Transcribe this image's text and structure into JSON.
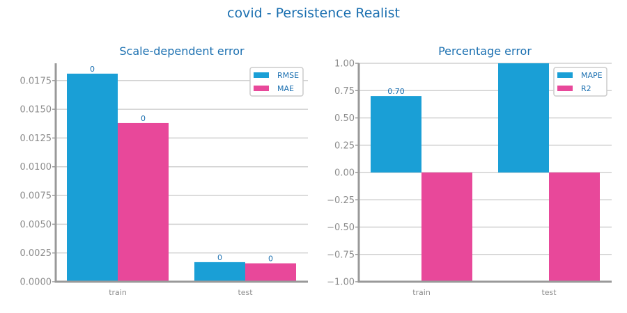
{
  "figure": {
    "title": "covid - Persistence Realist"
  },
  "colors": {
    "series1": "#1a9fd6",
    "series2": "#e8489a",
    "text": "#1a6fb0",
    "axis": "#999999",
    "grid": "#d0d0d0"
  },
  "chart_data": [
    {
      "type": "bar",
      "title": "Scale-dependent error",
      "categories": [
        "train",
        "test"
      ],
      "series": [
        {
          "name": "RMSE",
          "values": [
            0.0181,
            0.0017
          ],
          "labels": [
            "0",
            "0"
          ]
        },
        {
          "name": "MAE",
          "values": [
            0.0138,
            0.0016
          ],
          "labels": [
            "0",
            "0"
          ]
        }
      ],
      "ylim": [
        0,
        0.019
      ],
      "yticks": [
        0,
        0.0025,
        0.005,
        0.0075,
        0.01,
        0.0125,
        0.015,
        0.0175
      ],
      "ytick_labels": [
        "0.0000",
        "0.0025",
        "0.0050",
        "0.0075",
        "0.0100",
        "0.0125",
        "0.0150",
        "0.0175"
      ],
      "legend": "top-right",
      "grid": true
    },
    {
      "type": "bar",
      "title": "Percentage error",
      "categories": [
        "train",
        "test"
      ],
      "series": [
        {
          "name": "MAPE",
          "values": [
            0.7,
            1.0
          ],
          "labels": [
            "0.70",
            ""
          ]
        },
        {
          "name": "R2",
          "values": [
            -1.0,
            -1.0
          ],
          "labels": [
            "",
            ""
          ]
        }
      ],
      "ylim": [
        -1.0,
        1.0
      ],
      "yticks": [
        -1.0,
        -0.75,
        -0.5,
        -0.25,
        0.0,
        0.25,
        0.5,
        0.75,
        1.0
      ],
      "ytick_labels": [
        "−1.00",
        "−0.75",
        "−0.50",
        "−0.25",
        "0.00",
        "0.25",
        "0.50",
        "0.75",
        "1.00"
      ],
      "legend": "top-right",
      "grid": true
    }
  ]
}
